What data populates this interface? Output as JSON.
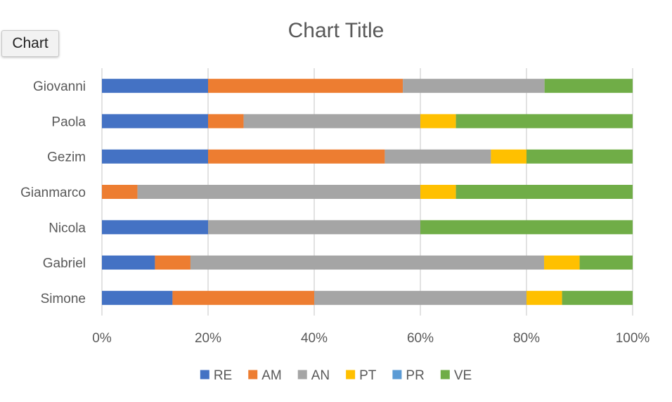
{
  "chart_button": {
    "label": "Chart"
  },
  "chart_data": {
    "type": "bar",
    "orientation": "horizontal",
    "stacking": "percent",
    "title": "Chart Title",
    "categories": [
      "Simone",
      "Gabriel",
      "Nicola",
      "Gianmarco",
      "Gezim",
      "Paola",
      "Giovanni"
    ],
    "x_ticks": [
      "0%",
      "20%",
      "40%",
      "60%",
      "80%",
      "100%"
    ],
    "xlim": [
      0,
      100
    ],
    "grid": "vertical",
    "legend_position": "bottom",
    "series": [
      {
        "name": "RE",
        "color": "#4472c4",
        "values": [
          13.3,
          10,
          20,
          0,
          20,
          20,
          20
        ]
      },
      {
        "name": "AM",
        "color": "#ed7d31",
        "values": [
          26.7,
          6.7,
          0,
          6.7,
          33.3,
          6.7,
          36.7
        ]
      },
      {
        "name": "AN",
        "color": "#a5a5a5",
        "values": [
          40,
          66.7,
          40,
          53.3,
          20,
          33.3,
          26.7
        ]
      },
      {
        "name": "PT",
        "color": "#ffc000",
        "values": [
          6.7,
          6.7,
          0,
          6.7,
          6.7,
          6.7,
          0
        ]
      },
      {
        "name": "PR",
        "color": "#5b9bd5",
        "values": [
          0,
          0,
          0,
          0,
          0,
          0,
          0
        ]
      },
      {
        "name": "VE",
        "color": "#70ad47",
        "values": [
          13.3,
          10,
          40,
          33.3,
          20,
          33.3,
          16.6
        ]
      }
    ]
  }
}
